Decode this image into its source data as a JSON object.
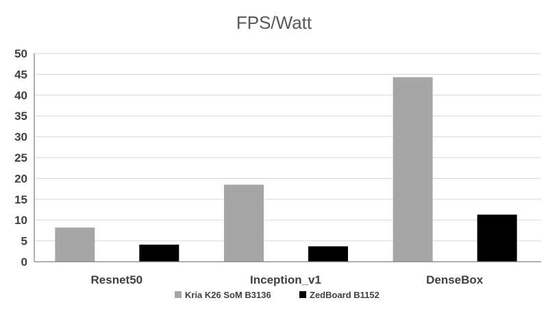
{
  "chart_data": {
    "type": "bar",
    "title": "FPS/Watt",
    "xlabel": "",
    "ylabel": "",
    "categories": [
      "Resnet50",
      "Inception_v1",
      "DenseBox"
    ],
    "series": [
      {
        "name": "Kria K26 SoM B3136",
        "values": [
          8.2,
          18.5,
          44.3
        ],
        "color": "#a6a6a6"
      },
      {
        "name": "ZedBoard B1152",
        "values": [
          4.1,
          3.7,
          11.3
        ],
        "color": "#000000"
      }
    ],
    "ylim": [
      0,
      50
    ],
    "yticks": [
      "0",
      "5",
      "10",
      "15",
      "20",
      "25",
      "30",
      "35",
      "40",
      "45",
      "50"
    ],
    "grid": true,
    "legend_position": "bottom"
  }
}
